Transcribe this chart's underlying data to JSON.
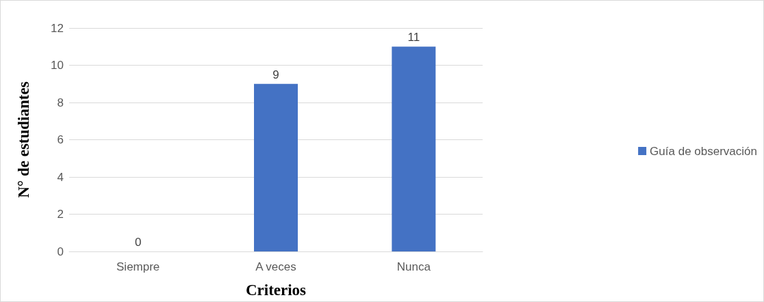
{
  "chart_data": {
    "type": "bar",
    "xlabel": "Criterios",
    "ylabel": "N° de estudiantes",
    "categories": [
      "Siempre",
      "A veces",
      "Nunca"
    ],
    "series": [
      {
        "name": "Guía de observación",
        "color": "#4472c4",
        "values": [
          0,
          9,
          11
        ]
      }
    ],
    "ylim": [
      0,
      12
    ],
    "yticks": [
      0,
      2,
      4,
      6,
      8,
      10,
      12
    ],
    "grid": "y",
    "legend": "right",
    "data_labels": true
  }
}
